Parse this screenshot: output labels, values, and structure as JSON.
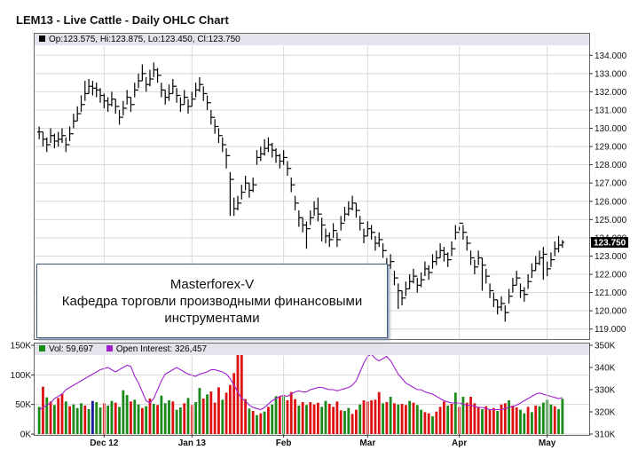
{
  "title": "LEM13 - Live Cattle - Daily OHLC Chart",
  "price_legend": "Op:123.575, Hi:123.875, Lo:123.450, Cl:123.750",
  "last_price_label": "123.750",
  "volume_legend": "Vol: 59,697",
  "oi_legend": "Open Interest: 326,457",
  "watermark": {
    "line1": "Masterforex-V",
    "line2": "Кафедра торговли производными финансовыми",
    "line3": "инструментами"
  },
  "colors": {
    "up": "#1a8a1a",
    "down": "#dd1111",
    "neutral": "#1a1aa0",
    "oi": "#a020d0",
    "price": "#000000",
    "last_box": "#000000"
  },
  "chart_data": [
    {
      "type": "ohlc",
      "title": "LEM13 - Live Cattle - Daily OHLC Chart",
      "x_ticks": [
        "Dec 12",
        "Jan 13",
        "Feb",
        "Mar",
        "Apr",
        "May"
      ],
      "x_tick_index": [
        17,
        40,
        64,
        86,
        110,
        133
      ],
      "ylim": [
        118.5,
        134.5
      ],
      "y_ticks": [
        "119.000",
        "120.000",
        "121.000",
        "122.000",
        "123.000",
        "124.000",
        "125.000",
        "126.000",
        "127.000",
        "128.000",
        "129.000",
        "130.000",
        "131.000",
        "132.000",
        "133.000",
        "134.000"
      ],
      "close": [
        129.8,
        129.4,
        129.1,
        129.6,
        129.3,
        129.4,
        129.6,
        129.1,
        129.7,
        130.4,
        130.8,
        131.3,
        131.9,
        132.3,
        132.2,
        132.1,
        131.8,
        131.5,
        131.3,
        131.6,
        131.2,
        130.6,
        131.1,
        131.7,
        131.3,
        132.1,
        132.6,
        133.0,
        132.4,
        132.7,
        133.2,
        132.9,
        132.1,
        131.7,
        131.9,
        132.3,
        131.8,
        131.3,
        131.7,
        131.2,
        131.6,
        132.1,
        132.4,
        131.9,
        131.4,
        130.6,
        130.1,
        129.6,
        129.1,
        128.5,
        127.2,
        125.6,
        125.9,
        126.5,
        127.0,
        126.6,
        126.9,
        128.4,
        128.6,
        128.9,
        129.1,
        128.8,
        128.5,
        128.2,
        128.4,
        127.8,
        126.9,
        125.9,
        125.1,
        124.7,
        124.5,
        125.1,
        125.6,
        125.3,
        124.7,
        124.1,
        123.9,
        124.4,
        123.9,
        124.8,
        125.3,
        125.6,
        125.9,
        125.5,
        124.8,
        124.1,
        124.5,
        124.3,
        123.7,
        123.9,
        123.3,
        122.5,
        122.7,
        121.8,
        121.1,
        120.7,
        121.2,
        121.6,
        121.9,
        121.4,
        121.7,
        122.3,
        122.1,
        122.7,
        122.9,
        123.3,
        123.1,
        122.8,
        123.4,
        124.3,
        124.8,
        124.3,
        123.7,
        122.9,
        122.4,
        122.9,
        122.5,
        121.9,
        121.1,
        120.6,
        120.2,
        120.4,
        119.9,
        120.8,
        121.4,
        121.8,
        121.1,
        120.9,
        121.6,
        122.2,
        122.6,
        122.9,
        123.1,
        122.3,
        122.8,
        123.4,
        123.6,
        123.75
      ],
      "high": [
        130.1,
        129.8,
        129.5,
        130.0,
        129.7,
        129.8,
        130.0,
        129.5,
        130.1,
        130.8,
        131.2,
        131.8,
        132.6,
        132.7,
        132.6,
        132.5,
        132.2,
        131.9,
        131.7,
        132.0,
        131.6,
        131.0,
        131.5,
        132.1,
        131.7,
        132.5,
        133.0,
        133.5,
        132.8,
        133.2,
        133.6,
        133.3,
        132.5,
        132.1,
        132.4,
        132.7,
        132.2,
        131.7,
        132.1,
        131.6,
        132.0,
        132.5,
        132.8,
        132.3,
        131.8,
        131.0,
        130.5,
        130.0,
        129.5,
        128.9,
        127.6,
        126.2,
        126.3,
        126.9,
        127.4,
        127.0,
        127.3,
        128.8,
        129.0,
        129.4,
        129.5,
        129.2,
        128.9,
        128.6,
        128.8,
        128.2,
        127.3,
        126.3,
        125.5,
        125.1,
        124.9,
        125.5,
        126.0,
        126.2,
        125.1,
        124.5,
        124.3,
        124.8,
        124.3,
        125.2,
        125.7,
        126.0,
        126.3,
        125.9,
        125.2,
        124.5,
        124.9,
        124.7,
        124.1,
        124.3,
        123.7,
        122.9,
        123.1,
        122.2,
        121.5,
        121.1,
        121.6,
        122.0,
        122.3,
        121.8,
        122.1,
        122.7,
        122.5,
        123.1,
        123.3,
        123.7,
        123.5,
        123.2,
        123.8,
        124.7,
        124.6,
        124.7,
        124.1,
        123.3,
        122.8,
        123.3,
        122.9,
        122.3,
        121.5,
        121.0,
        120.6,
        120.8,
        120.3,
        121.2,
        121.8,
        122.2,
        121.5,
        121.3,
        122.0,
        122.6,
        123.0,
        123.3,
        123.5,
        122.7,
        123.2,
        123.8,
        124.1,
        123.875
      ],
      "low": [
        129.4,
        129.0,
        128.7,
        129.2,
        128.9,
        129.0,
        129.2,
        128.7,
        129.3,
        130.0,
        130.4,
        130.9,
        131.5,
        131.9,
        131.8,
        131.7,
        131.4,
        131.1,
        130.9,
        131.2,
        130.8,
        130.2,
        130.7,
        131.3,
        130.9,
        131.7,
        132.2,
        132.6,
        132.0,
        132.3,
        132.8,
        132.5,
        131.7,
        131.3,
        131.5,
        131.9,
        131.4,
        130.9,
        131.3,
        130.8,
        131.2,
        131.7,
        132.0,
        131.5,
        131.0,
        130.2,
        129.7,
        129.2,
        128.7,
        127.8,
        125.2,
        125.2,
        125.5,
        126.1,
        126.6,
        126.2,
        126.5,
        128.0,
        128.2,
        128.5,
        128.7,
        128.4,
        128.1,
        127.8,
        128.0,
        127.4,
        126.5,
        125.5,
        124.6,
        124.3,
        123.4,
        124.7,
        125.2,
        124.9,
        123.8,
        123.7,
        123.5,
        124.0,
        123.5,
        124.4,
        124.9,
        125.2,
        125.5,
        125.1,
        124.4,
        123.7,
        124.1,
        123.9,
        123.3,
        123.5,
        122.9,
        122.1,
        122.3,
        121.4,
        120.1,
        120.3,
        120.8,
        121.2,
        121.5,
        121.0,
        121.3,
        121.9,
        121.7,
        122.3,
        122.5,
        122.9,
        122.7,
        122.4,
        123.0,
        123.9,
        124.4,
        123.9,
        123.3,
        122.5,
        122.0,
        122.5,
        121.1,
        121.5,
        120.7,
        120.2,
        119.8,
        120.0,
        119.4,
        120.4,
        121.0,
        121.4,
        120.7,
        120.5,
        121.2,
        121.8,
        122.2,
        122.5,
        121.7,
        121.9,
        122.4,
        123.0,
        123.2,
        123.45
      ]
    },
    {
      "type": "bar",
      "title": "Volume",
      "ylim": [
        0,
        150000
      ],
      "y_ticks": [
        "0K",
        "50K",
        "100K",
        "150K"
      ],
      "values": [
        46000,
        80000,
        62000,
        55000,
        49000,
        61000,
        68000,
        55000,
        47000,
        50000,
        44000,
        52000,
        48000,
        42000,
        56000,
        54000,
        45000,
        52000,
        48000,
        56000,
        53000,
        46000,
        74000,
        66000,
        55000,
        58000,
        50000,
        44000,
        47000,
        60000,
        51000,
        49000,
        65000,
        52000,
        57000,
        55000,
        41000,
        45000,
        52000,
        61000,
        49000,
        54000,
        78000,
        60000,
        67000,
        72000,
        53000,
        79000,
        58000,
        70000,
        83000,
        103000,
        140000,
        135000,
        59000,
        43000,
        39000,
        32000,
        35000,
        38000,
        46000,
        50000,
        64000,
        64000,
        64000,
        57000,
        71000,
        59000,
        48000,
        54000,
        49000,
        54000,
        50000,
        53000,
        46000,
        56000,
        51000,
        46000,
        55000,
        40000,
        39000,
        44000,
        34000,
        41000,
        50000,
        57000,
        55000,
        57000,
        58000,
        71000,
        52000,
        54000,
        63000,
        52000,
        50000,
        51000,
        49000,
        56000,
        53000,
        49000,
        41000,
        37000,
        35000,
        30000,
        38000,
        46000,
        55000,
        48000,
        51000,
        70000,
        46000,
        63000,
        53000,
        63000,
        52000,
        46000,
        42000,
        47000,
        42000,
        44000,
        39000,
        50000,
        52000,
        57000,
        48000,
        45000,
        41000,
        35000,
        46000,
        37000,
        48000,
        47000,
        53000,
        58000,
        50000,
        47000,
        42000,
        59697
      ],
      "colors": [
        "g",
        "r",
        "g",
        "r",
        "g",
        "r",
        "r",
        "g",
        "r",
        "g",
        "g",
        "g",
        "r",
        "g",
        "b",
        "g",
        "g",
        "r",
        "g",
        "g",
        "r",
        "g",
        "g",
        "g",
        "r",
        "g",
        "g",
        "r",
        "g",
        "r",
        "g",
        "r",
        "g",
        "g",
        "g",
        "r",
        "g",
        "g",
        "r",
        "g",
        "r",
        "g",
        "g",
        "r",
        "g",
        "r",
        "r",
        "r",
        "g",
        "r",
        "r",
        "r",
        "r",
        "r",
        "r",
        "g",
        "r",
        "g",
        "r",
        "g",
        "r",
        "g",
        "g",
        "r",
        "g",
        "r",
        "r",
        "r",
        "g",
        "r",
        "g",
        "r",
        "r",
        "r",
        "g",
        "g",
        "r",
        "r",
        "r",
        "r",
        "g",
        "g",
        "r",
        "r",
        "g",
        "r",
        "r",
        "r",
        "r",
        "r",
        "g",
        "r",
        "g",
        "r",
        "g",
        "r",
        "r",
        "g",
        "r",
        "g",
        "g",
        "r",
        "r",
        "g",
        "r",
        "r",
        "r",
        "g",
        "r",
        "g",
        "r",
        "g",
        "r",
        "r",
        "r",
        "r",
        "g",
        "r",
        "r",
        "r",
        "g",
        "r",
        "r",
        "g",
        "r",
        "r",
        "g",
        "g",
        "r",
        "g",
        "r",
        "g",
        "g",
        "g",
        "g",
        "r",
        "g",
        "g"
      ]
    },
    {
      "type": "line",
      "title": "Open Interest",
      "ylim": [
        310000,
        350000
      ],
      "y_ticks": [
        "310K",
        "320K",
        "330K",
        "340K",
        "350K"
      ],
      "values": [
        321000,
        322000,
        323000,
        324000,
        326000,
        327000,
        328000,
        330000,
        331000,
        332000,
        333000,
        334000,
        335000,
        336000,
        337000,
        338000,
        339000,
        339500,
        340000,
        339000,
        338000,
        339000,
        340000,
        341000,
        340500,
        336000,
        333000,
        329000,
        325000,
        324000,
        326000,
        330000,
        334000,
        337000,
        338000,
        339000,
        340000,
        339000,
        338000,
        337000,
        336500,
        336000,
        337000,
        337500,
        338000,
        339000,
        339000,
        338500,
        338000,
        337000,
        335000,
        332000,
        329000,
        326000,
        325000,
        323000,
        322000,
        321500,
        321000,
        322000,
        323500,
        325000,
        326000,
        327000,
        327500,
        327000,
        328000,
        329000,
        329500,
        329000,
        329000,
        330000,
        330500,
        331000,
        331000,
        330500,
        330000,
        330000,
        329500,
        330000,
        330500,
        331000,
        332000,
        334000,
        338000,
        342000,
        345000,
        346000,
        344000,
        343000,
        344000,
        345000,
        343000,
        340000,
        337000,
        335000,
        333000,
        332000,
        331000,
        330000,
        330000,
        329000,
        328500,
        328000,
        327000,
        326000,
        325000,
        324500,
        324000,
        324000,
        324000,
        323500,
        323000,
        323000,
        322500,
        322000,
        322000,
        321500,
        321000,
        321000,
        321000,
        321000,
        321500,
        322000,
        322500,
        323000,
        324000,
        325000,
        326000,
        327000,
        328000,
        328500,
        328000,
        327500,
        327000,
        326500,
        326000,
        326457
      ]
    }
  ]
}
